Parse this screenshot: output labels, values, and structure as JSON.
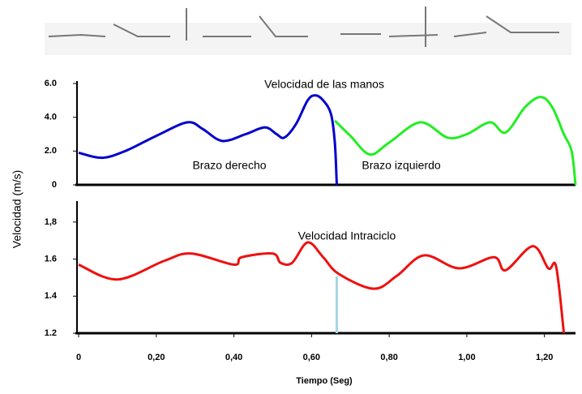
{
  "chart_data": [
    {
      "type": "line",
      "title": "Velocidad de las manos",
      "ylabel": "Velocidad (m/s)",
      "xlim": [
        0,
        1.28
      ],
      "ylim": [
        0,
        6
      ],
      "yticks": [
        {
          "value": 0,
          "label": "0"
        },
        {
          "value": 2,
          "label": "2.0"
        },
        {
          "value": 4,
          "label": "4.0"
        },
        {
          "value": 6,
          "label": "6.0"
        }
      ],
      "series": [
        {
          "name": "Brazo derecho",
          "color": "#0000cc",
          "x": [
            0,
            0.06,
            0.12,
            0.2,
            0.28,
            0.32,
            0.37,
            0.43,
            0.48,
            0.51,
            0.53,
            0.56,
            0.59,
            0.61,
            0.63,
            0.65,
            0.66,
            0.665
          ],
          "values": [
            1.9,
            1.6,
            2.0,
            2.9,
            3.7,
            3.3,
            2.6,
            3.0,
            3.4,
            3.0,
            2.8,
            3.6,
            5.0,
            5.3,
            5.0,
            4.2,
            2.5,
            0
          ]
        },
        {
          "name": "Brazo izquierdo",
          "color": "#22ee22",
          "x": [
            0.66,
            0.7,
            0.75,
            0.8,
            0.88,
            0.95,
            1.0,
            1.06,
            1.1,
            1.15,
            1.19,
            1.22,
            1.25,
            1.27,
            1.28
          ],
          "values": [
            3.8,
            2.9,
            1.8,
            2.5,
            3.7,
            2.8,
            3.0,
            3.7,
            3.1,
            4.6,
            5.2,
            4.6,
            3.0,
            2.0,
            0
          ]
        }
      ]
    },
    {
      "type": "line",
      "title": "Velocidad  Intraciclo",
      "xlabel": "Tiempo (Seg)",
      "xlim": [
        0,
        1.28
      ],
      "ylim": [
        1.2,
        1.9
      ],
      "xticks": [
        {
          "value": 0,
          "label": "0"
        },
        {
          "value": 0.2,
          "label": "0,20"
        },
        {
          "value": 0.4,
          "label": "0,40"
        },
        {
          "value": 0.6,
          "label": "0,60"
        },
        {
          "value": 0.8,
          "label": "0,80"
        },
        {
          "value": 1.0,
          "label": "1,00"
        },
        {
          "value": 1.2,
          "label": "1,20"
        }
      ],
      "yticks": [
        {
          "value": 1.2,
          "label": "1.2"
        },
        {
          "value": 1.4,
          "label": "1.4"
        },
        {
          "value": 1.6,
          "label": "1.6"
        },
        {
          "value": 1.8,
          "label": "1,8"
        }
      ],
      "vline": {
        "x": 0.665,
        "color": "#a8d4e4"
      },
      "series": [
        {
          "color": "#ee1111",
          "x": [
            0,
            0.1,
            0.22,
            0.29,
            0.4,
            0.42,
            0.5,
            0.52,
            0.55,
            0.59,
            0.63,
            0.67,
            0.76,
            0.82,
            0.89,
            0.98,
            1.07,
            1.1,
            1.17,
            1.21,
            1.23,
            1.25
          ],
          "values": [
            1.57,
            1.49,
            1.59,
            1.63,
            1.57,
            1.61,
            1.63,
            1.58,
            1.58,
            1.69,
            1.61,
            1.52,
            1.44,
            1.51,
            1.62,
            1.55,
            1.61,
            1.54,
            1.67,
            1.55,
            1.56,
            1.2
          ]
        }
      ]
    }
  ]
}
